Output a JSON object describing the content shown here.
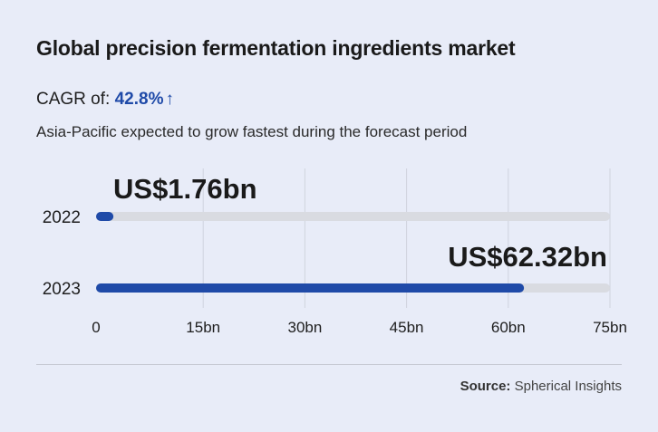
{
  "title": "Global precision fermentation ingredients market",
  "cagr": {
    "label": "CAGR of:",
    "value": "42.8%",
    "arrow": "↑"
  },
  "subtitle": "Asia-Pacific expected to grow fastest during the forecast period",
  "source": {
    "label": "Source:",
    "value": "Spherical Insights"
  },
  "colors": {
    "bar": "#1f4aa8",
    "track": "#d9dbe1",
    "grid": "#cfd3de",
    "background": "#e8ecf8"
  },
  "chart_data": {
    "type": "bar",
    "orientation": "horizontal",
    "categories": [
      "2022",
      "2023"
    ],
    "values": [
      1.76,
      62.32
    ],
    "value_labels": [
      "US$1.76bn",
      "US$62.32bn"
    ],
    "xlim": [
      0,
      75
    ],
    "x_ticks": [
      0,
      15,
      30,
      45,
      60,
      75
    ],
    "x_tick_labels": [
      "0",
      "15bn",
      "30bn",
      "45bn",
      "60bn",
      "75bn"
    ],
    "grid": true
  }
}
